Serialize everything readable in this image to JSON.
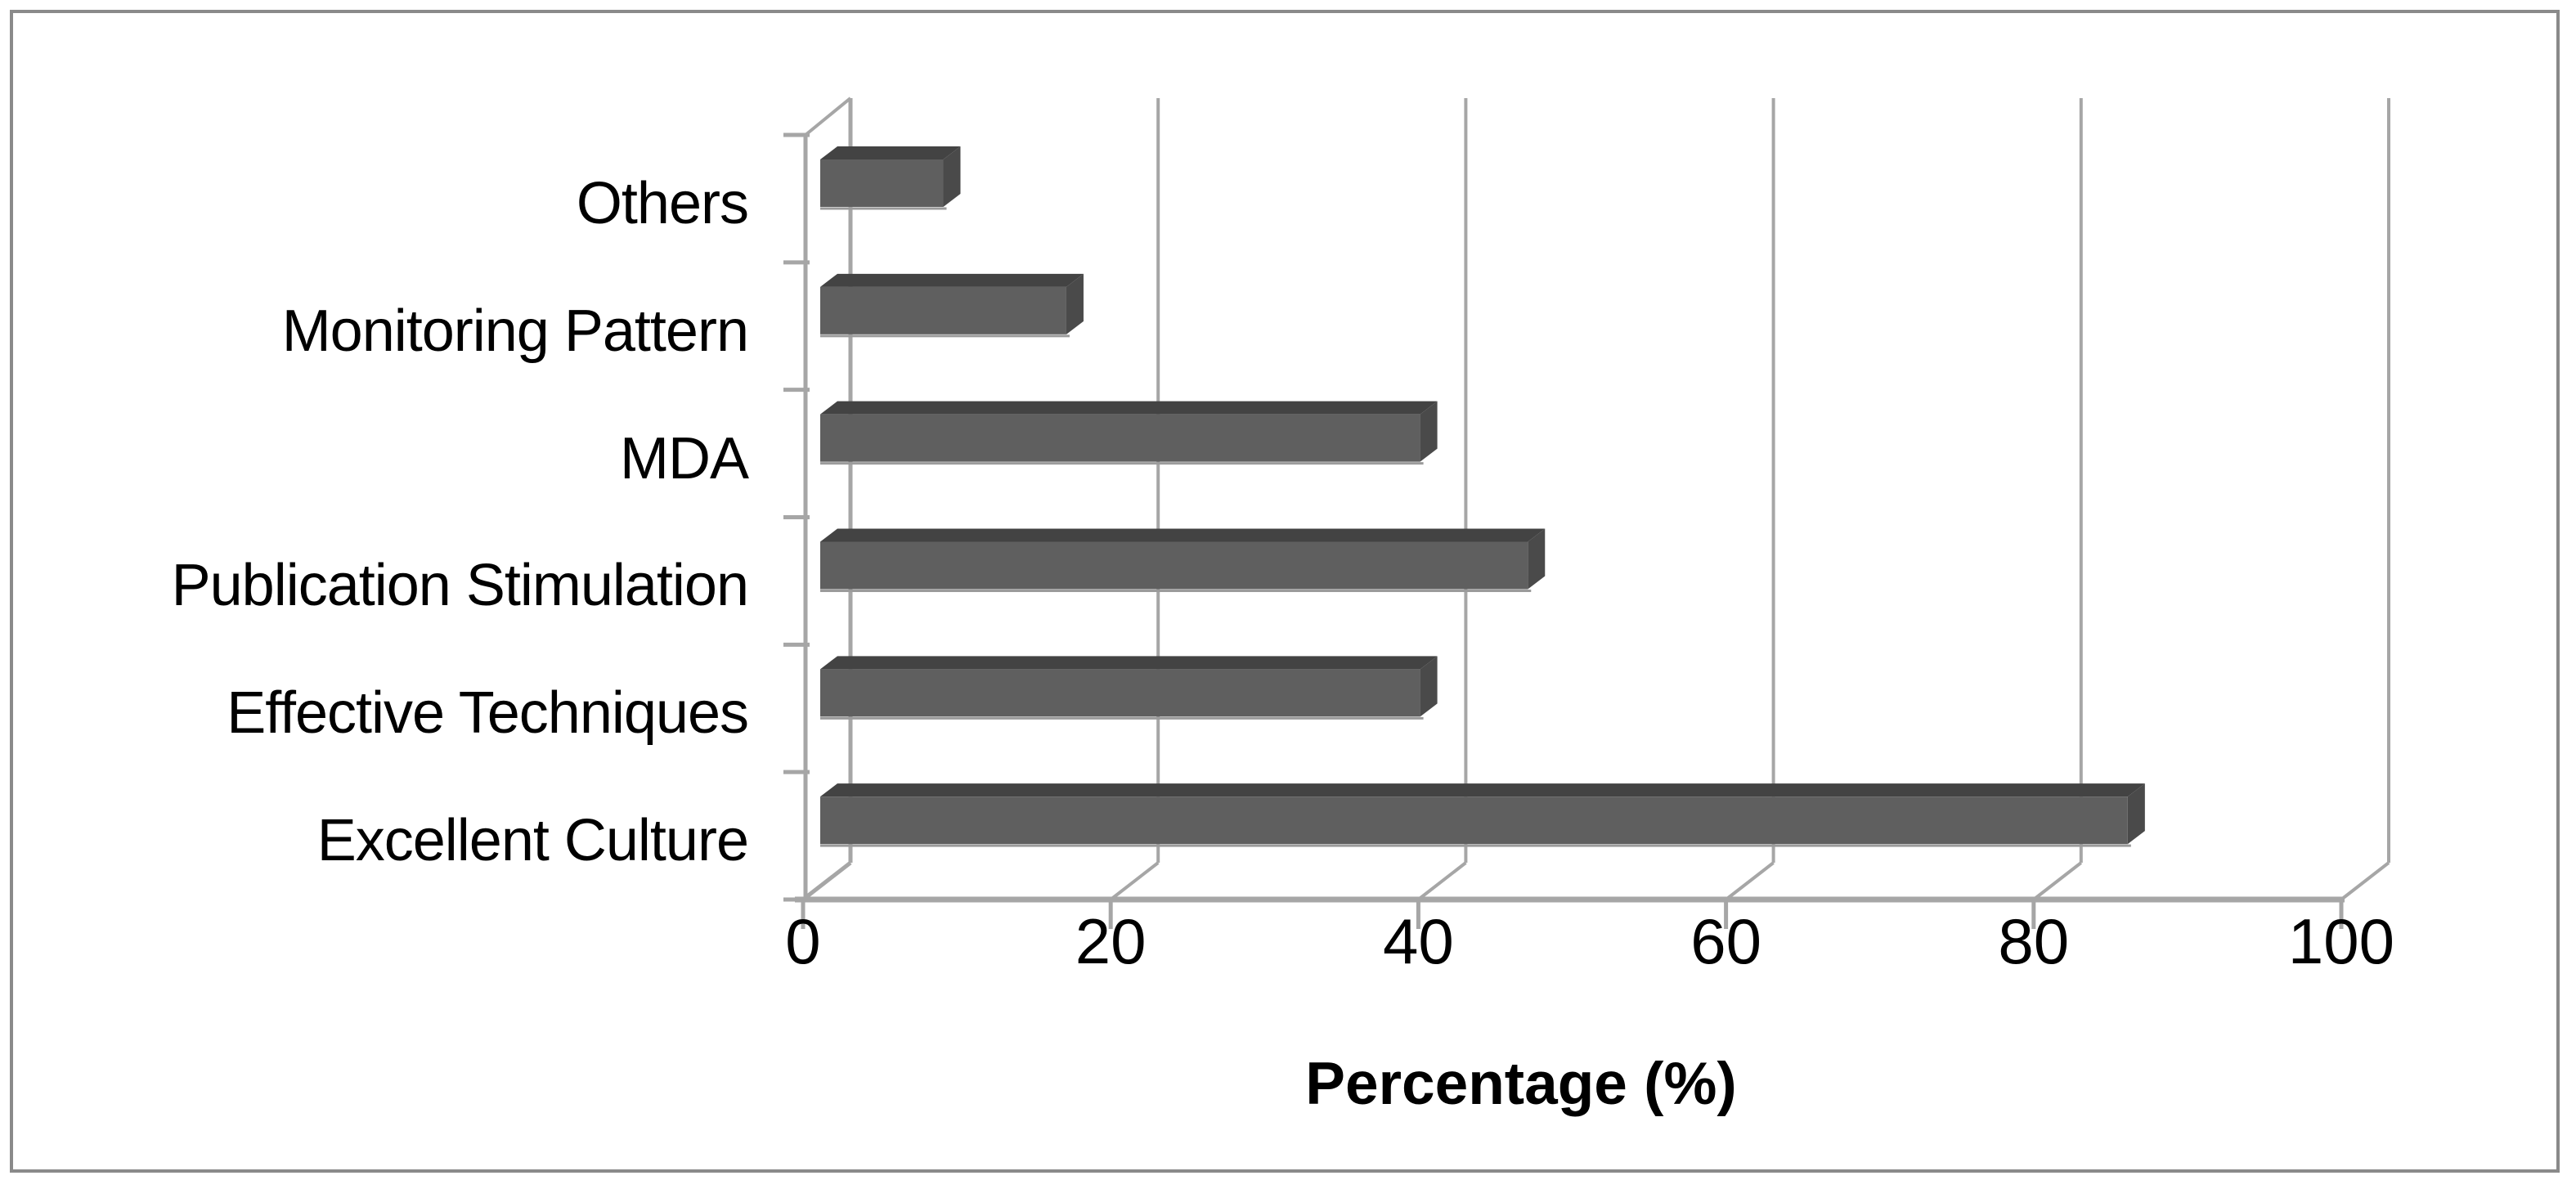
{
  "chart_data": {
    "type": "bar",
    "orientation": "horizontal",
    "style": "3d-oblique",
    "title": "",
    "xlabel": "Percentage (%)",
    "ylabel": "",
    "categories": [
      "Others",
      "Monitoring Pattern",
      "MDA",
      "Publication Stimulation",
      "Effective Techniques",
      "Excellent Culture"
    ],
    "values": [
      8,
      16,
      39,
      46,
      39,
      85
    ],
    "xlim": [
      0,
      100
    ],
    "xticks": [
      0,
      20,
      40,
      60,
      80,
      100
    ],
    "grid": true,
    "legend": false,
    "colors": {
      "bar_front": "#5f5f5f",
      "bar_top": "#434343",
      "bar_side": "#4a4a4a",
      "bar_bottom_edge": "#9b9b9b",
      "gridline": "#a6a6a6",
      "axis": "#a6a6a6",
      "frame_border": "#8a8a8a",
      "text": "#000000",
      "background": "#ffffff"
    }
  }
}
